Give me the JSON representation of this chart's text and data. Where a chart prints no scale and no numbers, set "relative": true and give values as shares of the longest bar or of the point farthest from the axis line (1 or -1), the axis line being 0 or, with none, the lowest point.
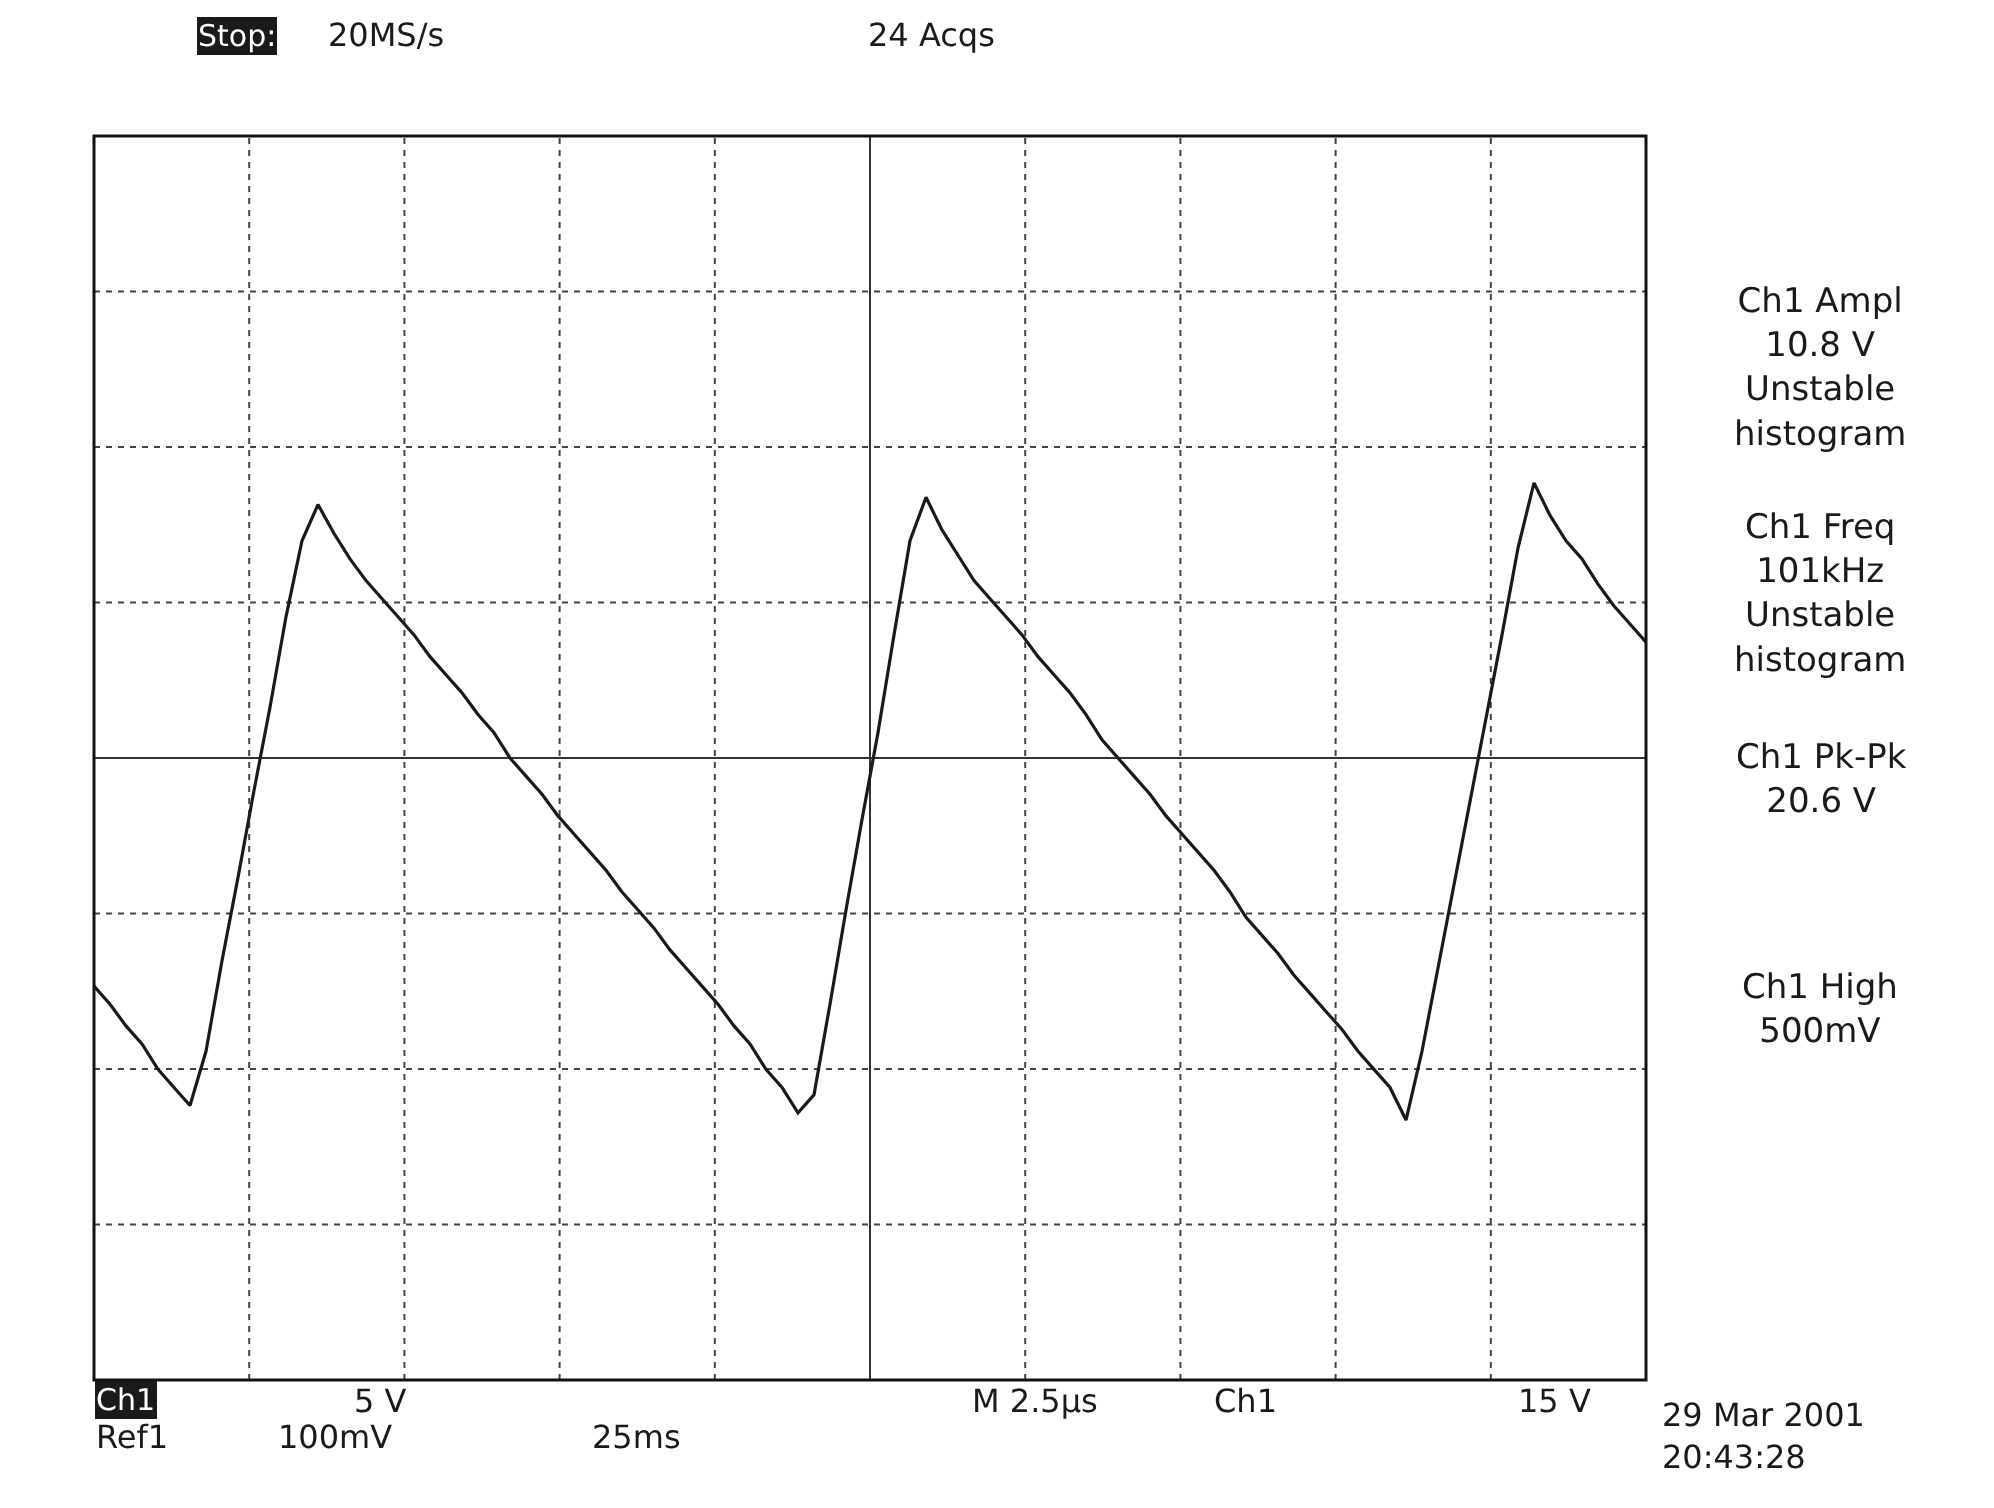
{
  "chart_data": {
    "type": "line",
    "relative": true,
    "grid": true,
    "categories": [
      null,
      null,
      null,
      null,
      null,
      null,
      null,
      null,
      null,
      null,
      null,
      null,
      null,
      null,
      null,
      null,
      null,
      null,
      null,
      null,
      null,
      null,
      null,
      null,
      null,
      null,
      null,
      null,
      null,
      null,
      null,
      null,
      null,
      null,
      null,
      null,
      null,
      null,
      null,
      null,
      null,
      null,
      null,
      null,
      null,
      null,
      null,
      null,
      null,
      null,
      null,
      null,
      null,
      null,
      null,
      null,
      null,
      null,
      null,
      null,
      null,
      null,
      null,
      null,
      null,
      null,
      null,
      null,
      null,
      null,
      null,
      null,
      null,
      null,
      null,
      null,
      null,
      null,
      null,
      null,
      null,
      null,
      null,
      null,
      null,
      null,
      null,
      null,
      null,
      null,
      null,
      null,
      null,
      null,
      null,
      null,
      null,
      null
    ],
    "series": [
      {
        "color": "#1a1a1a",
        "values": [
          -0.63,
          -0.68,
          -0.74,
          -0.79,
          -0.86,
          -0.91,
          -0.96,
          -0.81,
          -0.56,
          -0.33,
          -0.09,
          0.14,
          0.39,
          0.6,
          0.7,
          0.62,
          0.55,
          0.49,
          0.44,
          0.39,
          0.34,
          0.28,
          0.23,
          0.18,
          0.12,
          0.07,
          0.0,
          -0.05,
          -0.1,
          -0.16,
          -0.21,
          -0.26,
          -0.31,
          -0.37,
          -0.42,
          -0.47,
          -0.53,
          -0.58,
          -0.63,
          -0.68,
          -0.74,
          -0.79,
          -0.86,
          -0.91,
          -0.98,
          -0.93,
          -0.68,
          -0.42,
          -0.17,
          0.07,
          0.34,
          0.6,
          0.72,
          0.63,
          0.56,
          0.49,
          0.44,
          0.39,
          0.34,
          0.28,
          0.23,
          0.18,
          0.12,
          0.05,
          0.0,
          -0.05,
          -0.1,
          -0.16,
          -0.21,
          -0.26,
          -0.31,
          -0.37,
          -0.44,
          -0.49,
          -0.54,
          -0.6,
          -0.65,
          -0.7,
          -0.75,
          -0.81,
          -0.86,
          -0.91,
          -1.0,
          -0.81,
          -0.58,
          -0.35,
          -0.12,
          0.11,
          0.34,
          0.58,
          0.76,
          0.67,
          0.6,
          0.55,
          0.48,
          0.42,
          0.37,
          0.32
        ]
      }
    ],
    "annotations": [
      "Stop:",
      "20MS/s",
      "24 Acqs",
      "Ch1 Ampl\n10.8 V\nUnstable\nhistogram",
      "Ch1 Freq\n101kHz\nUnstable\nhistogram",
      "Ch1 Pk-Pk\n20.6 V",
      "Ch1 High\n500mV",
      "Ch1",
      "5 V",
      "M 2.5µs",
      "Ch1",
      "15 V",
      "Ref1",
      "100mV",
      "25ms",
      "29 Mar 2001\n20:43:28"
    ]
  }
}
